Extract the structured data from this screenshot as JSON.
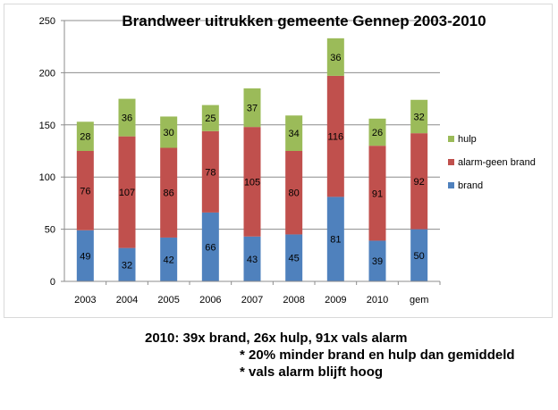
{
  "chart_data": {
    "type": "bar",
    "stacked": true,
    "title": "Brandweer uitrukken gemeente Gennep 2003-2010",
    "categories": [
      "2003",
      "2004",
      "2005",
      "2006",
      "2007",
      "2008",
      "2009",
      "2010",
      "gem"
    ],
    "series": [
      {
        "name": "brand",
        "color": "#4f81bd",
        "values": [
          49,
          32,
          42,
          66,
          43,
          45,
          81,
          39,
          50
        ]
      },
      {
        "name": "alarm-geen brand",
        "color": "#c0504d",
        "values": [
          76,
          107,
          86,
          78,
          105,
          80,
          116,
          91,
          92
        ]
      },
      {
        "name": "hulp",
        "color": "#9bbb59",
        "values": [
          28,
          36,
          30,
          25,
          37,
          34,
          36,
          26,
          32
        ]
      }
    ],
    "ylim": [
      0,
      250
    ],
    "yticks": [
      0,
      50,
      100,
      150,
      200,
      250
    ],
    "grid": true,
    "legend_position": "right",
    "data_labels": true
  },
  "notes": {
    "line1": "2010: 39x brand, 26x hulp, 91x vals alarm",
    "line2": "* 20% minder brand en hulp dan gemiddeld",
    "line3": "* vals alarm blijft hoog"
  }
}
